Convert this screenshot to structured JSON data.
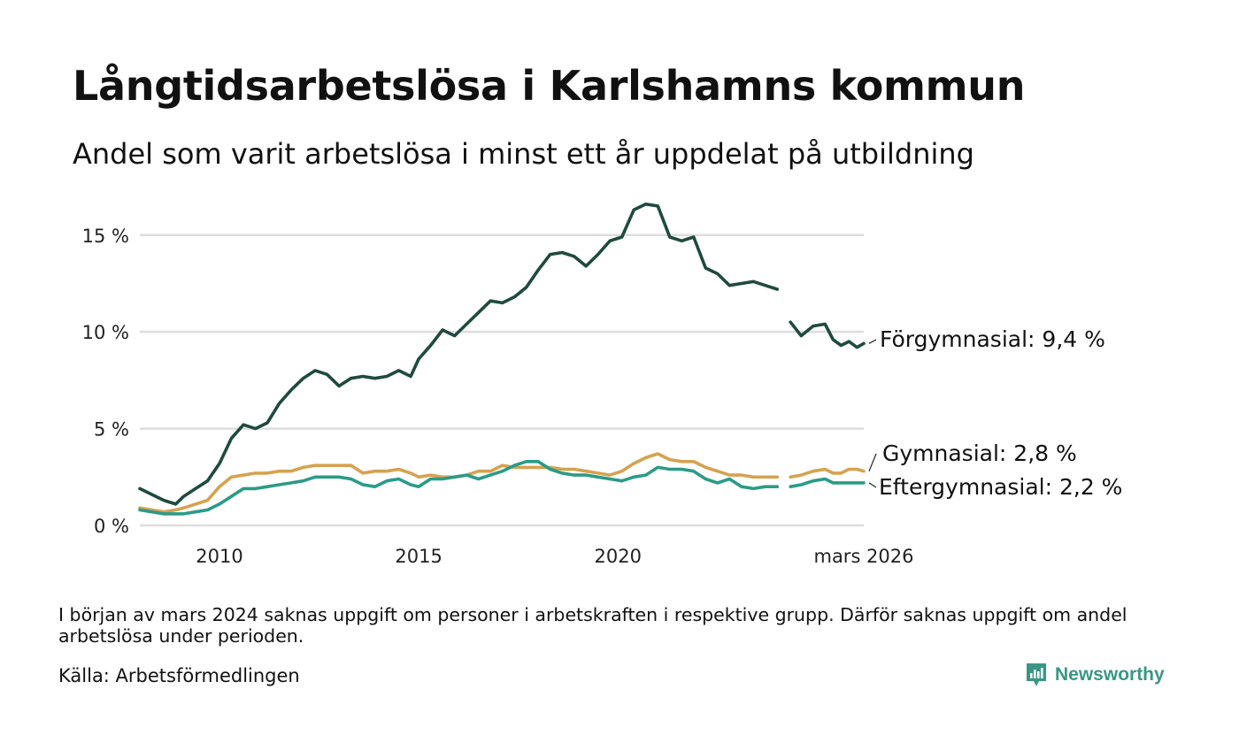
{
  "title": "Långtidsarbetslösa i Karlshamns kommun",
  "subtitle": "Andel som varit arbetslösa i minst ett år uppdelat på utbildning",
  "note": "I början av mars 2024 saknas uppgift om personer i arbetskraften i respektive grupp. Därför saknas uppgift om andel arbetslösa under perioden.",
  "source": "Källa: Arbetsförmedlingen",
  "brand": {
    "name": "Newsworthy",
    "icon": "newsworthy-logo-icon",
    "color": "#3a9684"
  },
  "chart_data": {
    "type": "line",
    "title": "Långtidsarbetslösa i Karlshamns kommun",
    "xlabel": "",
    "ylabel": "",
    "xlim": [
      2008.0,
      2026.17
    ],
    "ylim": [
      0,
      17
    ],
    "grid": true,
    "y_ticks": [
      {
        "value": 0,
        "label": "0 %"
      },
      {
        "value": 5,
        "label": "5 %"
      },
      {
        "value": 10,
        "label": "10 %"
      },
      {
        "value": 15,
        "label": "15 %"
      }
    ],
    "x_ticks": [
      {
        "value": 2010,
        "label": "2010"
      },
      {
        "value": 2015,
        "label": "2015"
      },
      {
        "value": 2020,
        "label": "2020"
      },
      {
        "value": 2026.17,
        "label": "mars 2026"
      }
    ],
    "gap": [
      2024.0,
      2024.33
    ],
    "series": [
      {
        "name": "Förgymnasial",
        "label": "Förgymnasial: 9,4 %",
        "color": "#1f4a3f",
        "points": [
          [
            2008.0,
            1.9
          ],
          [
            2008.3,
            1.6
          ],
          [
            2008.6,
            1.3
          ],
          [
            2008.9,
            1.1
          ],
          [
            2009.1,
            1.5
          ],
          [
            2009.4,
            1.9
          ],
          [
            2009.7,
            2.3
          ],
          [
            2010.0,
            3.2
          ],
          [
            2010.3,
            4.5
          ],
          [
            2010.6,
            5.2
          ],
          [
            2010.9,
            5.0
          ],
          [
            2011.2,
            5.3
          ],
          [
            2011.5,
            6.3
          ],
          [
            2011.8,
            7.0
          ],
          [
            2012.1,
            7.6
          ],
          [
            2012.4,
            8.0
          ],
          [
            2012.7,
            7.8
          ],
          [
            2013.0,
            7.2
          ],
          [
            2013.3,
            7.6
          ],
          [
            2013.6,
            7.7
          ],
          [
            2013.9,
            7.6
          ],
          [
            2014.2,
            7.7
          ],
          [
            2014.5,
            8.0
          ],
          [
            2014.8,
            7.7
          ],
          [
            2015.0,
            8.6
          ],
          [
            2015.3,
            9.3
          ],
          [
            2015.6,
            10.1
          ],
          [
            2015.9,
            9.8
          ],
          [
            2016.2,
            10.4
          ],
          [
            2016.5,
            11.0
          ],
          [
            2016.8,
            11.6
          ],
          [
            2017.1,
            11.5
          ],
          [
            2017.4,
            11.8
          ],
          [
            2017.7,
            12.3
          ],
          [
            2018.0,
            13.2
          ],
          [
            2018.3,
            14.0
          ],
          [
            2018.6,
            14.1
          ],
          [
            2018.9,
            13.9
          ],
          [
            2019.2,
            13.4
          ],
          [
            2019.5,
            14.0
          ],
          [
            2019.8,
            14.7
          ],
          [
            2020.1,
            14.9
          ],
          [
            2020.4,
            16.3
          ],
          [
            2020.7,
            16.6
          ],
          [
            2021.0,
            16.5
          ],
          [
            2021.3,
            14.9
          ],
          [
            2021.6,
            14.7
          ],
          [
            2021.9,
            14.9
          ],
          [
            2022.2,
            13.3
          ],
          [
            2022.5,
            13.0
          ],
          [
            2022.8,
            12.4
          ],
          [
            2023.1,
            12.5
          ],
          [
            2023.4,
            12.6
          ],
          [
            2023.7,
            12.4
          ],
          [
            2024.0,
            12.2
          ],
          null,
          [
            2024.33,
            10.5
          ],
          [
            2024.6,
            9.8
          ],
          [
            2024.9,
            10.3
          ],
          [
            2025.2,
            10.4
          ],
          [
            2025.4,
            9.6
          ],
          [
            2025.6,
            9.3
          ],
          [
            2025.8,
            9.5
          ],
          [
            2026.0,
            9.2
          ],
          [
            2026.17,
            9.4
          ]
        ]
      },
      {
        "name": "Gymnasial",
        "label": "Gymnasial: 2,8 %",
        "color": "#d6a24f",
        "points": [
          [
            2008.0,
            0.9
          ],
          [
            2008.3,
            0.8
          ],
          [
            2008.6,
            0.7
          ],
          [
            2008.9,
            0.8
          ],
          [
            2009.1,
            0.9
          ],
          [
            2009.4,
            1.1
          ],
          [
            2009.7,
            1.3
          ],
          [
            2010.0,
            2.0
          ],
          [
            2010.3,
            2.5
          ],
          [
            2010.6,
            2.6
          ],
          [
            2010.9,
            2.7
          ],
          [
            2011.2,
            2.7
          ],
          [
            2011.5,
            2.8
          ],
          [
            2011.8,
            2.8
          ],
          [
            2012.1,
            3.0
          ],
          [
            2012.4,
            3.1
          ],
          [
            2012.7,
            3.1
          ],
          [
            2013.0,
            3.1
          ],
          [
            2013.3,
            3.1
          ],
          [
            2013.6,
            2.7
          ],
          [
            2013.9,
            2.8
          ],
          [
            2014.2,
            2.8
          ],
          [
            2014.5,
            2.9
          ],
          [
            2014.8,
            2.7
          ],
          [
            2015.0,
            2.5
          ],
          [
            2015.3,
            2.6
          ],
          [
            2015.6,
            2.5
          ],
          [
            2015.9,
            2.5
          ],
          [
            2016.2,
            2.6
          ],
          [
            2016.5,
            2.8
          ],
          [
            2016.8,
            2.8
          ],
          [
            2017.1,
            3.1
          ],
          [
            2017.4,
            3.0
          ],
          [
            2017.7,
            3.0
          ],
          [
            2018.0,
            3.0
          ],
          [
            2018.3,
            3.0
          ],
          [
            2018.6,
            2.9
          ],
          [
            2018.9,
            2.9
          ],
          [
            2019.2,
            2.8
          ],
          [
            2019.5,
            2.7
          ],
          [
            2019.8,
            2.6
          ],
          [
            2020.1,
            2.8
          ],
          [
            2020.4,
            3.2
          ],
          [
            2020.7,
            3.5
          ],
          [
            2021.0,
            3.7
          ],
          [
            2021.3,
            3.4
          ],
          [
            2021.6,
            3.3
          ],
          [
            2021.9,
            3.3
          ],
          [
            2022.2,
            3.0
          ],
          [
            2022.5,
            2.8
          ],
          [
            2022.8,
            2.6
          ],
          [
            2023.1,
            2.6
          ],
          [
            2023.4,
            2.5
          ],
          [
            2023.7,
            2.5
          ],
          [
            2024.0,
            2.5
          ],
          null,
          [
            2024.33,
            2.5
          ],
          [
            2024.6,
            2.6
          ],
          [
            2024.9,
            2.8
          ],
          [
            2025.2,
            2.9
          ],
          [
            2025.4,
            2.7
          ],
          [
            2025.6,
            2.7
          ],
          [
            2025.8,
            2.9
          ],
          [
            2026.0,
            2.9
          ],
          [
            2026.17,
            2.8
          ]
        ]
      },
      {
        "name": "Eftergymnasial",
        "label": "Eftergymnasial: 2,2 %",
        "color": "#2a9b88",
        "points": [
          [
            2008.0,
            0.8
          ],
          [
            2008.3,
            0.7
          ],
          [
            2008.6,
            0.6
          ],
          [
            2008.9,
            0.6
          ],
          [
            2009.1,
            0.6
          ],
          [
            2009.4,
            0.7
          ],
          [
            2009.7,
            0.8
          ],
          [
            2010.0,
            1.1
          ],
          [
            2010.3,
            1.5
          ],
          [
            2010.6,
            1.9
          ],
          [
            2010.9,
            1.9
          ],
          [
            2011.2,
            2.0
          ],
          [
            2011.5,
            2.1
          ],
          [
            2011.8,
            2.2
          ],
          [
            2012.1,
            2.3
          ],
          [
            2012.4,
            2.5
          ],
          [
            2012.7,
            2.5
          ],
          [
            2013.0,
            2.5
          ],
          [
            2013.3,
            2.4
          ],
          [
            2013.6,
            2.1
          ],
          [
            2013.9,
            2.0
          ],
          [
            2014.2,
            2.3
          ],
          [
            2014.5,
            2.4
          ],
          [
            2014.8,
            2.1
          ],
          [
            2015.0,
            2.0
          ],
          [
            2015.3,
            2.4
          ],
          [
            2015.6,
            2.4
          ],
          [
            2015.9,
            2.5
          ],
          [
            2016.2,
            2.6
          ],
          [
            2016.5,
            2.4
          ],
          [
            2016.8,
            2.6
          ],
          [
            2017.1,
            2.8
          ],
          [
            2017.4,
            3.1
          ],
          [
            2017.7,
            3.3
          ],
          [
            2018.0,
            3.3
          ],
          [
            2018.3,
            2.9
          ],
          [
            2018.6,
            2.7
          ],
          [
            2018.9,
            2.6
          ],
          [
            2019.2,
            2.6
          ],
          [
            2019.5,
            2.5
          ],
          [
            2019.8,
            2.4
          ],
          [
            2020.1,
            2.3
          ],
          [
            2020.4,
            2.5
          ],
          [
            2020.7,
            2.6
          ],
          [
            2021.0,
            3.0
          ],
          [
            2021.3,
            2.9
          ],
          [
            2021.6,
            2.9
          ],
          [
            2021.9,
            2.8
          ],
          [
            2022.2,
            2.4
          ],
          [
            2022.5,
            2.2
          ],
          [
            2022.8,
            2.4
          ],
          [
            2023.1,
            2.0
          ],
          [
            2023.4,
            1.9
          ],
          [
            2023.7,
            2.0
          ],
          [
            2024.0,
            2.0
          ],
          null,
          [
            2024.33,
            2.0
          ],
          [
            2024.6,
            2.1
          ],
          [
            2024.9,
            2.3
          ],
          [
            2025.2,
            2.4
          ],
          [
            2025.4,
            2.2
          ],
          [
            2025.6,
            2.2
          ],
          [
            2025.8,
            2.2
          ],
          [
            2026.0,
            2.2
          ],
          [
            2026.17,
            2.2
          ]
        ]
      }
    ]
  }
}
